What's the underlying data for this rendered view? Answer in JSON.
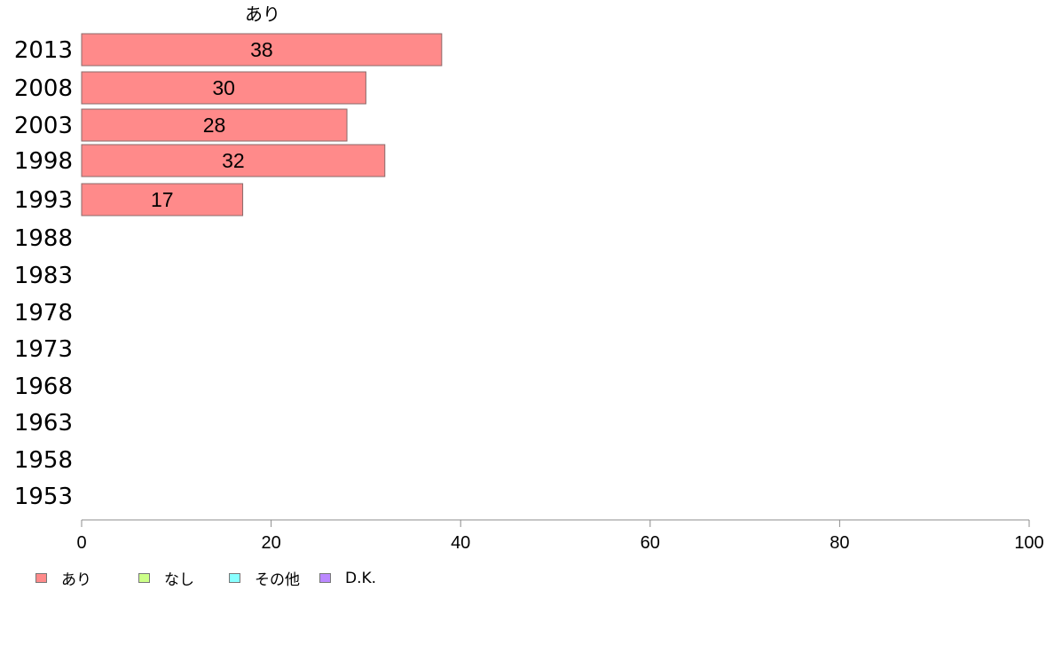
{
  "chart_data": {
    "type": "bar",
    "orientation": "horizontal",
    "title": "",
    "series_title": "あり",
    "categories": [
      "2013",
      "2008",
      "2003",
      "1998",
      "1993",
      "1988",
      "1983",
      "1978",
      "1973",
      "1968",
      "1963",
      "1958",
      "1953"
    ],
    "series": [
      {
        "name": "あり",
        "color": "#ff8a8a",
        "values": [
          38,
          30,
          28,
          32,
          17,
          null,
          null,
          null,
          null,
          null,
          null,
          null,
          null
        ],
        "labels": [
          "38",
          "30",
          "28",
          "32",
          "17",
          "",
          "",
          "",
          "",
          "",
          "",
          "",
          ""
        ]
      }
    ],
    "xlim": [
      0,
      100
    ],
    "xticks": [
      "0",
      "20",
      "40",
      "60",
      "80",
      "100"
    ],
    "grid": false,
    "legend_position": "bottom-left"
  },
  "legend": [
    {
      "label": "あり",
      "color": "#ff8a8a"
    },
    {
      "label": "なし",
      "color": "#ccff88"
    },
    {
      "label": "その他",
      "color": "#88ffff"
    },
    {
      "label": "D.K.",
      "color": "#bb88ff"
    }
  ]
}
